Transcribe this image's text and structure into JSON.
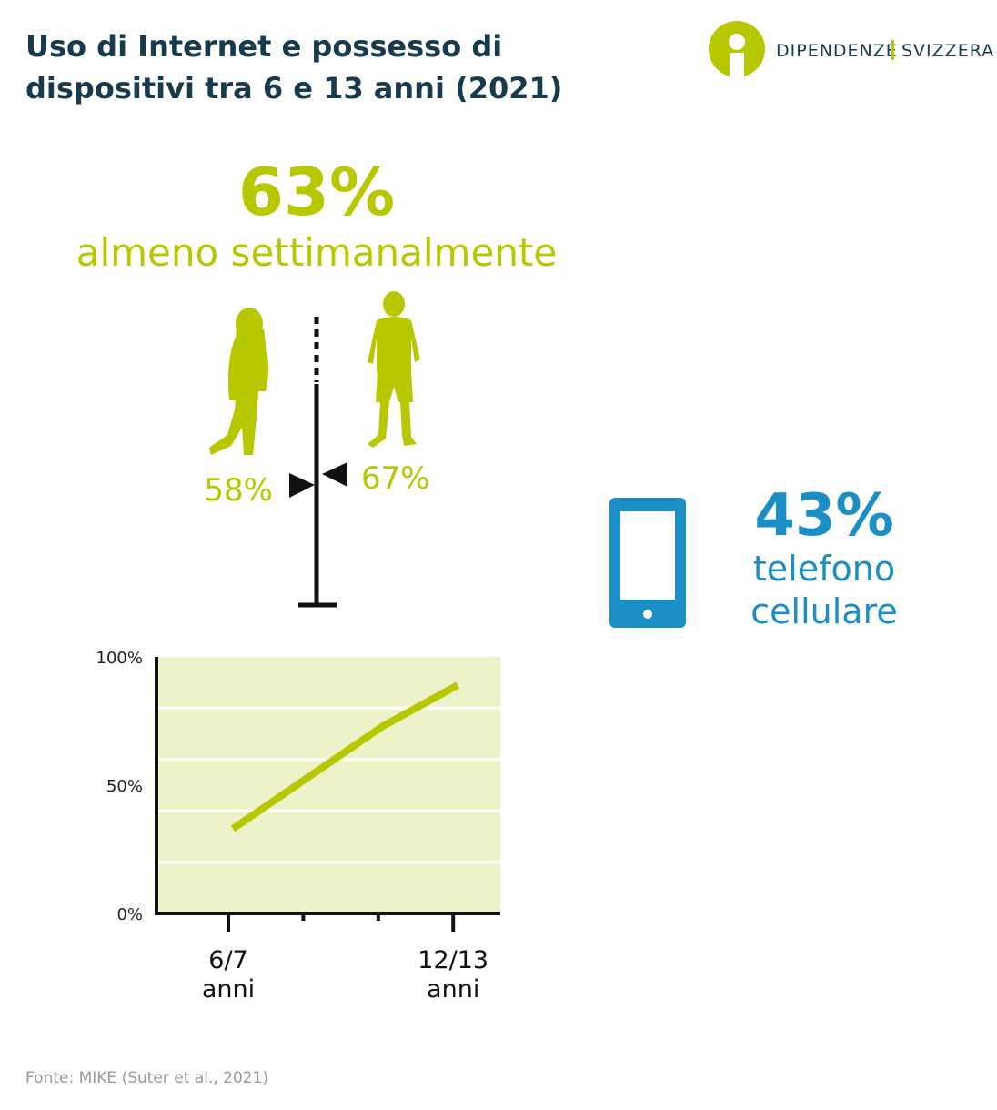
{
  "header": {
    "title_lines": [
      "Uso di Internet e possesso di",
      "dispositivi tra 6 e 13 anni (2021)"
    ]
  },
  "logo": {
    "left": "DIPENDENZE",
    "right": "SVIZZERA"
  },
  "internet": {
    "value": "63%",
    "label": "almeno settimanalmente",
    "girls": "58%",
    "boys": "67%"
  },
  "phone": {
    "value": "43%",
    "label_lines": [
      "telefono",
      "cellulare"
    ]
  },
  "chart_data": {
    "type": "line",
    "categories": [
      "6/7",
      null,
      null,
      "12/13"
    ],
    "category_unit": "anni",
    "series": [
      {
        "color": "#b8c800",
        "values": [
          33,
          53,
          73,
          89
        ]
      }
    ],
    "ylim": [
      0,
      100
    ],
    "yticks": [
      {
        "value": 0,
        "label": "0%"
      },
      {
        "value": 50,
        "label": "50%"
      },
      {
        "value": 100,
        "label": "100%"
      }
    ],
    "ygrid": [
      20,
      40,
      60,
      80
    ],
    "background": "#eef2c8"
  },
  "source": "Fonte: MIKE (Suter et al., 2021)"
}
